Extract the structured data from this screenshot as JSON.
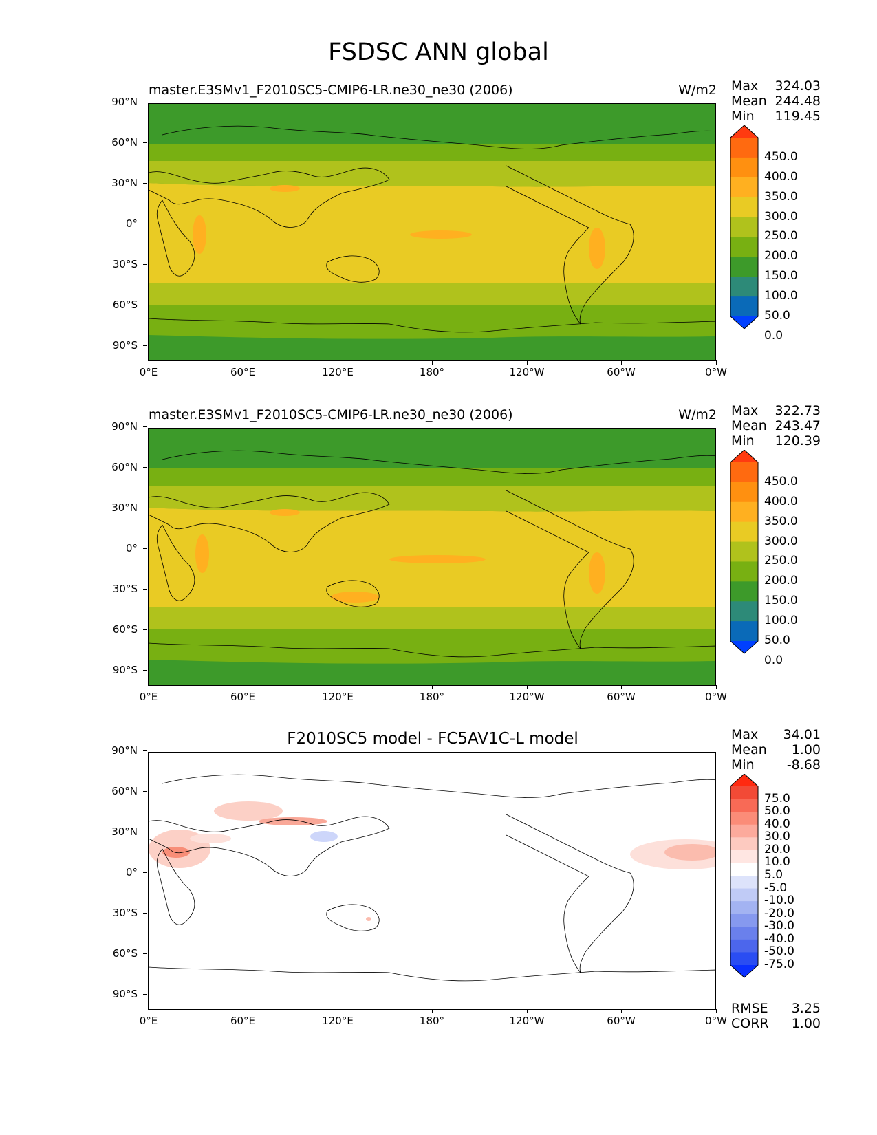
{
  "figure": {
    "title": "FSDSC ANN global"
  },
  "axes": {
    "lat_ticks": [
      "90°N",
      "60°N",
      "30°N",
      "0°",
      "30°S",
      "60°S",
      "90°S"
    ],
    "lon_ticks": [
      "0°E",
      "60°E",
      "120°E",
      "180°",
      "120°W",
      "60°W",
      "0°W"
    ]
  },
  "panels": [
    {
      "title": "master.E3SMv1_F2010SC5-CMIP6-LR.ne30_ne30 (2006)",
      "units": "W/m2",
      "stats": {
        "max": "324.03",
        "mean": "244.48",
        "min": "119.45"
      },
      "colorbar": {
        "levels": [
          "450.0",
          "400.0",
          "350.0",
          "300.0",
          "250.0",
          "200.0",
          "150.0",
          "100.0",
          "50.0",
          "0.0"
        ],
        "colors": [
          "#ff3a10",
          "#ff6a10",
          "#ff9010",
          "#ffb020",
          "#e9cb24",
          "#b0c21c",
          "#78b012",
          "#3d9a2a",
          "#2d8a78",
          "#0a6ab8",
          "#0040ff"
        ]
      }
    },
    {
      "title": "master.E3SMv1_F2010SC5-CMIP6-LR.ne30_ne30 (2006)",
      "units": "W/m2",
      "stats": {
        "max": "322.73",
        "mean": "243.47",
        "min": "120.39"
      },
      "colorbar": {
        "levels": [
          "450.0",
          "400.0",
          "350.0",
          "300.0",
          "250.0",
          "200.0",
          "150.0",
          "100.0",
          "50.0",
          "0.0"
        ],
        "colors": [
          "#ff3a10",
          "#ff6a10",
          "#ff9010",
          "#ffb020",
          "#e9cb24",
          "#b0c21c",
          "#78b012",
          "#3d9a2a",
          "#2d8a78",
          "#0a6ab8",
          "#0040ff"
        ]
      }
    },
    {
      "title": "F2010SC5 model - FC5AV1C-L model",
      "units": "",
      "stats": {
        "max": "34.01",
        "mean": "1.00",
        "min": "-8.68"
      },
      "colorbar": {
        "levels": [
          "75.0",
          "50.0",
          "40.0",
          "30.0",
          "20.0",
          "10.0",
          "5.0",
          "-5.0",
          "-10.0",
          "-20.0",
          "-30.0",
          "-40.0",
          "-50.0",
          "-75.0"
        ],
        "colors": [
          "#ff2a10",
          "#f24a36",
          "#f86a56",
          "#fb8c78",
          "#fcaa9c",
          "#fdcac0",
          "#ffe6e2",
          "#ffffff",
          "#dde3fb",
          "#c0cbf6",
          "#a3b3f2",
          "#8699ef",
          "#6a80ec",
          "#4c66ec",
          "#2a4df2",
          "#0a30ff"
        ]
      },
      "metrics": {
        "rmse": "3.25",
        "corr": "1.00"
      }
    }
  ],
  "labels": {
    "max": "Max",
    "mean": "Mean",
    "min": "Min",
    "rmse": "RMSE",
    "corr": "CORR"
  }
}
